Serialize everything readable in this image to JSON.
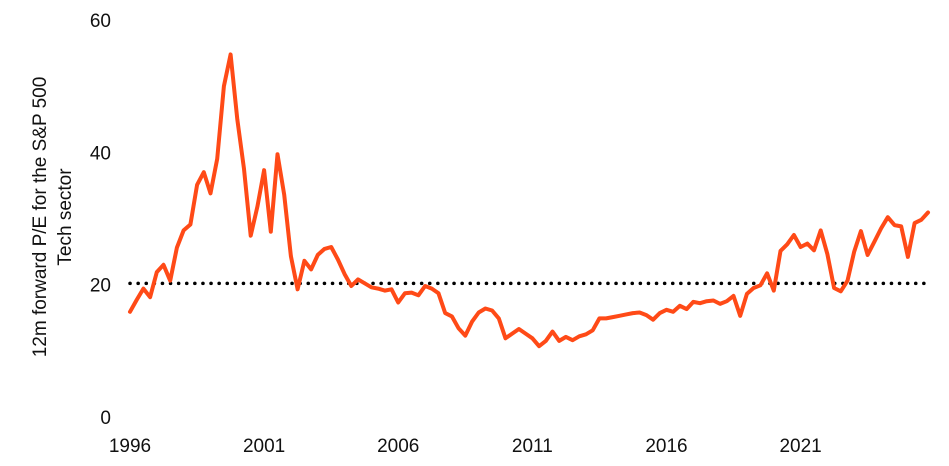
{
  "chart_data": {
    "type": "line",
    "title": "",
    "ylabel_lines": [
      "12m forward P/E for the S&P 500",
      "Tech sector"
    ],
    "xlabel": "",
    "xlim": [
      1996,
      2025.75
    ],
    "ylim": [
      0,
      60
    ],
    "x_ticks": [
      1996,
      2001,
      2006,
      2011,
      2016,
      2021
    ],
    "y_ticks": [
      0,
      20,
      40,
      60
    ],
    "grid": false,
    "legend": "none",
    "colors": {
      "line": "#ff4a17",
      "reference": "#000000"
    },
    "reference_line": {
      "y": 20.2,
      "style": "dotted"
    },
    "series": [
      {
        "x": [
          1996.0,
          1996.25,
          1996.5,
          1996.75,
          1997.0,
          1997.25,
          1997.5,
          1997.75,
          1998.0,
          1998.25,
          1998.5,
          1998.75,
          1999.0,
          1999.25,
          1999.5,
          1999.75,
          2000.0,
          2000.25,
          2000.5,
          2000.75,
          2001.0,
          2001.25,
          2001.5,
          2001.75,
          2002.0,
          2002.25,
          2002.5,
          2002.75,
          2003.0,
          2003.25,
          2003.5,
          2003.75,
          2004.0,
          2004.25,
          2004.5,
          2004.75,
          2005.0,
          2005.25,
          2005.5,
          2005.75,
          2006.0,
          2006.25,
          2006.5,
          2006.75,
          2007.0,
          2007.25,
          2007.5,
          2007.75,
          2008.0,
          2008.25,
          2008.5,
          2008.75,
          2009.0,
          2009.25,
          2009.5,
          2009.75,
          2010.0,
          2010.25,
          2010.5,
          2010.75,
          2011.0,
          2011.25,
          2011.5,
          2011.75,
          2012.0,
          2012.25,
          2012.5,
          2012.75,
          2013.0,
          2013.25,
          2013.5,
          2013.75,
          2014.0,
          2014.25,
          2014.5,
          2014.75,
          2015.0,
          2015.25,
          2015.5,
          2015.75,
          2016.0,
          2016.25,
          2016.5,
          2016.75,
          2017.0,
          2017.25,
          2017.5,
          2017.75,
          2018.0,
          2018.25,
          2018.5,
          2018.75,
          2019.0,
          2019.25,
          2019.5,
          2019.75,
          2020.0,
          2020.25,
          2020.5,
          2020.75,
          2021.0,
          2021.25,
          2021.5,
          2021.75,
          2022.0,
          2022.25,
          2022.5,
          2022.75,
          2023.0,
          2023.25,
          2023.5,
          2023.75,
          2024.0,
          2024.25,
          2024.5,
          2024.75,
          2025.0,
          2025.25,
          2025.5,
          2025.75
        ],
        "values": [
          15.9,
          17.7,
          19.4,
          18.1,
          21.9,
          23.0,
          20.6,
          25.6,
          28.2,
          29.1,
          35.1,
          37.0,
          33.8,
          39.0,
          50.0,
          54.8,
          45.0,
          37.5,
          27.4,
          31.8,
          37.3,
          28.0,
          39.7,
          33.6,
          24.3,
          19.3,
          23.6,
          22.3,
          24.5,
          25.4,
          25.7,
          23.8,
          21.6,
          19.8,
          20.8,
          20.2,
          19.6,
          19.4,
          19.1,
          19.3,
          17.3,
          18.7,
          18.8,
          18.4,
          19.8,
          19.4,
          18.7,
          15.7,
          15.2,
          13.4,
          12.3,
          14.4,
          15.8,
          16.4,
          16.1,
          14.9,
          11.9,
          12.6,
          13.3,
          12.6,
          11.9,
          10.7,
          11.5,
          12.9,
          11.5,
          12.1,
          11.6,
          12.2,
          12.5,
          13.1,
          14.9,
          14.9,
          15.1,
          15.3,
          15.5,
          15.7,
          15.8,
          15.4,
          14.7,
          15.7,
          16.2,
          15.9,
          16.8,
          16.3,
          17.4,
          17.2,
          17.5,
          17.6,
          17.1,
          17.5,
          18.3,
          15.3,
          18.6,
          19.5,
          19.9,
          21.7,
          19.1,
          25.1,
          26.1,
          27.5,
          25.7,
          26.2,
          25.2,
          28.2,
          24.6,
          19.5,
          19.0,
          20.6,
          25.0,
          28.1,
          24.5,
          26.5,
          28.5,
          30.2,
          29.0,
          28.8,
          24.2,
          29.3,
          29.8,
          30.9
        ]
      }
    ]
  }
}
